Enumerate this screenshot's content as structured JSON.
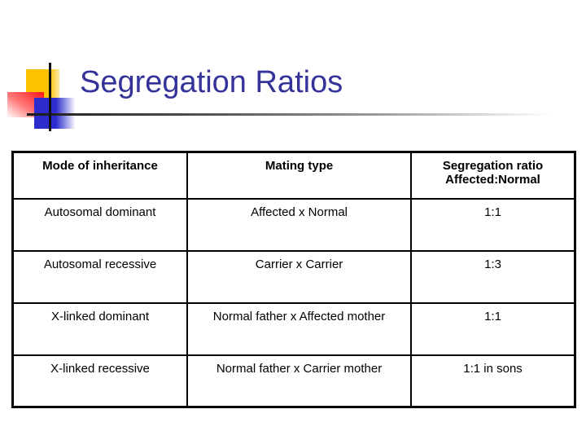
{
  "slide": {
    "title": "Segregation Ratios",
    "colors": {
      "title_text": "#333399",
      "yellow_square": "#FFC200",
      "red_square": "#FF1F1F",
      "blue_square": "#2B2BCE",
      "rule_line": "#1B1B1B",
      "table_border": "#000000",
      "table_text": "#000000",
      "background": "#FFFFFF"
    }
  },
  "table": {
    "headers": [
      {
        "label": "Mode of inheritance"
      },
      {
        "label": "Mating type"
      },
      {
        "label": "Segregation ratio",
        "label2": "Affected:Normal"
      }
    ],
    "rows": [
      {
        "mode": "Autosomal dominant",
        "mating": "Affected x Normal",
        "ratio": "1:1"
      },
      {
        "mode": "Autosomal recessive",
        "mating": "Carrier x Carrier",
        "ratio": "1:3"
      },
      {
        "mode": "X-linked dominant",
        "mating": "Normal father x Affected mother",
        "ratio": "1:1"
      },
      {
        "mode": "X-linked recessive",
        "mating": "Normal father x Carrier mother",
        "ratio": "1:1 in sons"
      }
    ]
  }
}
